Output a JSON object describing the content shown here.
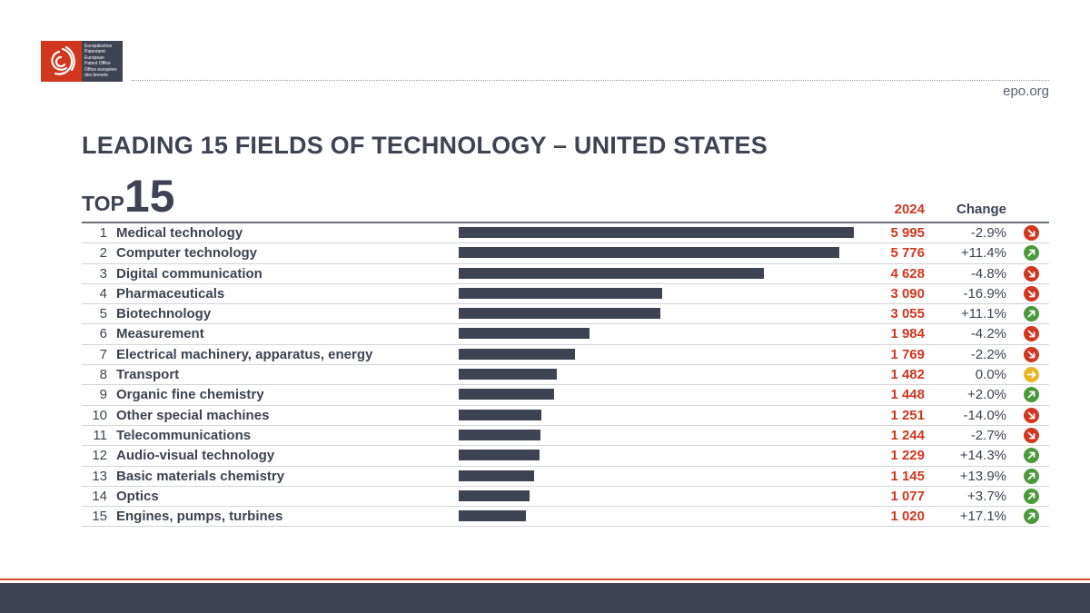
{
  "header": {
    "logo_lines": [
      "Europäisches",
      "Patentamt",
      "European",
      "Patent Office",
      "Office européen",
      "des brevets"
    ],
    "site": "epo.org"
  },
  "title": "LEADING 15 FIELDS OF TECHNOLOGY – UNITED STATES",
  "badge": {
    "prefix": "TOP",
    "number": "15"
  },
  "columns": {
    "year": "2024",
    "change": "Change"
  },
  "colors": {
    "accent": "#d1361e",
    "bar": "#3d4350",
    "up": "#4a9a3c",
    "down": "#d1361e",
    "flat": "#e9b623"
  },
  "chart_data": {
    "type": "bar",
    "orientation": "horizontal",
    "categories": [
      "Medical technology",
      "Computer technology",
      "Digital communication",
      "Pharmaceuticals",
      "Biotechnology",
      "Measurement",
      "Electrical machinery, apparatus, energy",
      "Transport",
      "Organic fine chemistry",
      "Other special machines",
      "Telecommunications",
      "Audio-visual technology",
      "Basic materials chemistry",
      "Optics",
      "Engines, pumps, turbines"
    ],
    "series": [
      {
        "name": "2024",
        "values": [
          5995,
          5776,
          4628,
          3090,
          3055,
          1984,
          1769,
          1482,
          1448,
          1251,
          1244,
          1229,
          1145,
          1077,
          1020
        ]
      }
    ],
    "ranks": [
      "1",
      "2",
      "3",
      "4",
      "5",
      "6",
      "7",
      "8",
      "9",
      "10",
      "11",
      "12",
      "13",
      "14",
      "15"
    ],
    "value_labels": [
      "5 995",
      "5 776",
      "4 628",
      "3 090",
      "3 055",
      "1 984",
      "1 769",
      "1 482",
      "1 448",
      "1 251",
      "1 244",
      "1 229",
      "1 145",
      "1 077",
      "1 020"
    ],
    "changes": [
      "-2.9%",
      "+11.4%",
      "-4.8%",
      "-16.9%",
      "+11.1%",
      "-4.2%",
      "-2.2%",
      "0.0%",
      "+2.0%",
      "-14.0%",
      "-2.7%",
      "+14.3%",
      "+13.9%",
      "+3.7%",
      "+17.1%"
    ],
    "trend_icons": [
      "down-arrow-icon",
      "up-arrow-icon",
      "down-arrow-icon",
      "down-arrow-icon",
      "up-arrow-icon",
      "down-arrow-icon",
      "down-arrow-icon",
      "right-arrow-icon",
      "up-arrow-icon",
      "down-arrow-icon",
      "down-arrow-icon",
      "up-arrow-icon",
      "up-arrow-icon",
      "up-arrow-icon",
      "up-arrow-icon"
    ],
    "xlim": [
      0,
      5995
    ]
  }
}
